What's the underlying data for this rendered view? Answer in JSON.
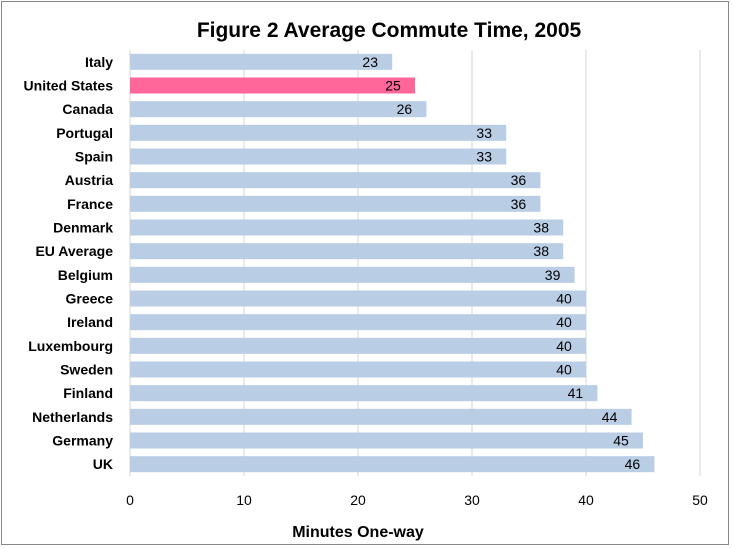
{
  "chart_data": {
    "type": "bar",
    "orientation": "horizontal",
    "title": "Figure 2  Average Commute Time, 2005",
    "xlabel": "Minutes One-way",
    "ylabel": "",
    "xlim": [
      0,
      50
    ],
    "xticks": [
      0,
      10,
      20,
      30,
      40,
      50
    ],
    "grid": true,
    "legend": "none",
    "categories": [
      "Italy",
      "United States",
      "Canada",
      "Portugal",
      "Spain",
      "Austria",
      "France",
      "Denmark",
      "EU Average",
      "Belgium",
      "Greece",
      "Ireland",
      "Luxembourg",
      "Sweden",
      "Finland",
      "Netherlands",
      "Germany",
      "UK"
    ],
    "values": [
      23,
      25,
      26,
      33,
      33,
      36,
      36,
      38,
      38,
      39,
      40,
      40,
      40,
      40,
      41,
      44,
      45,
      46
    ],
    "highlight_category": "United States",
    "colors": {
      "bar": "#b9cde5",
      "highlight": "#ff6699",
      "grid": "#d4d4d4"
    }
  }
}
